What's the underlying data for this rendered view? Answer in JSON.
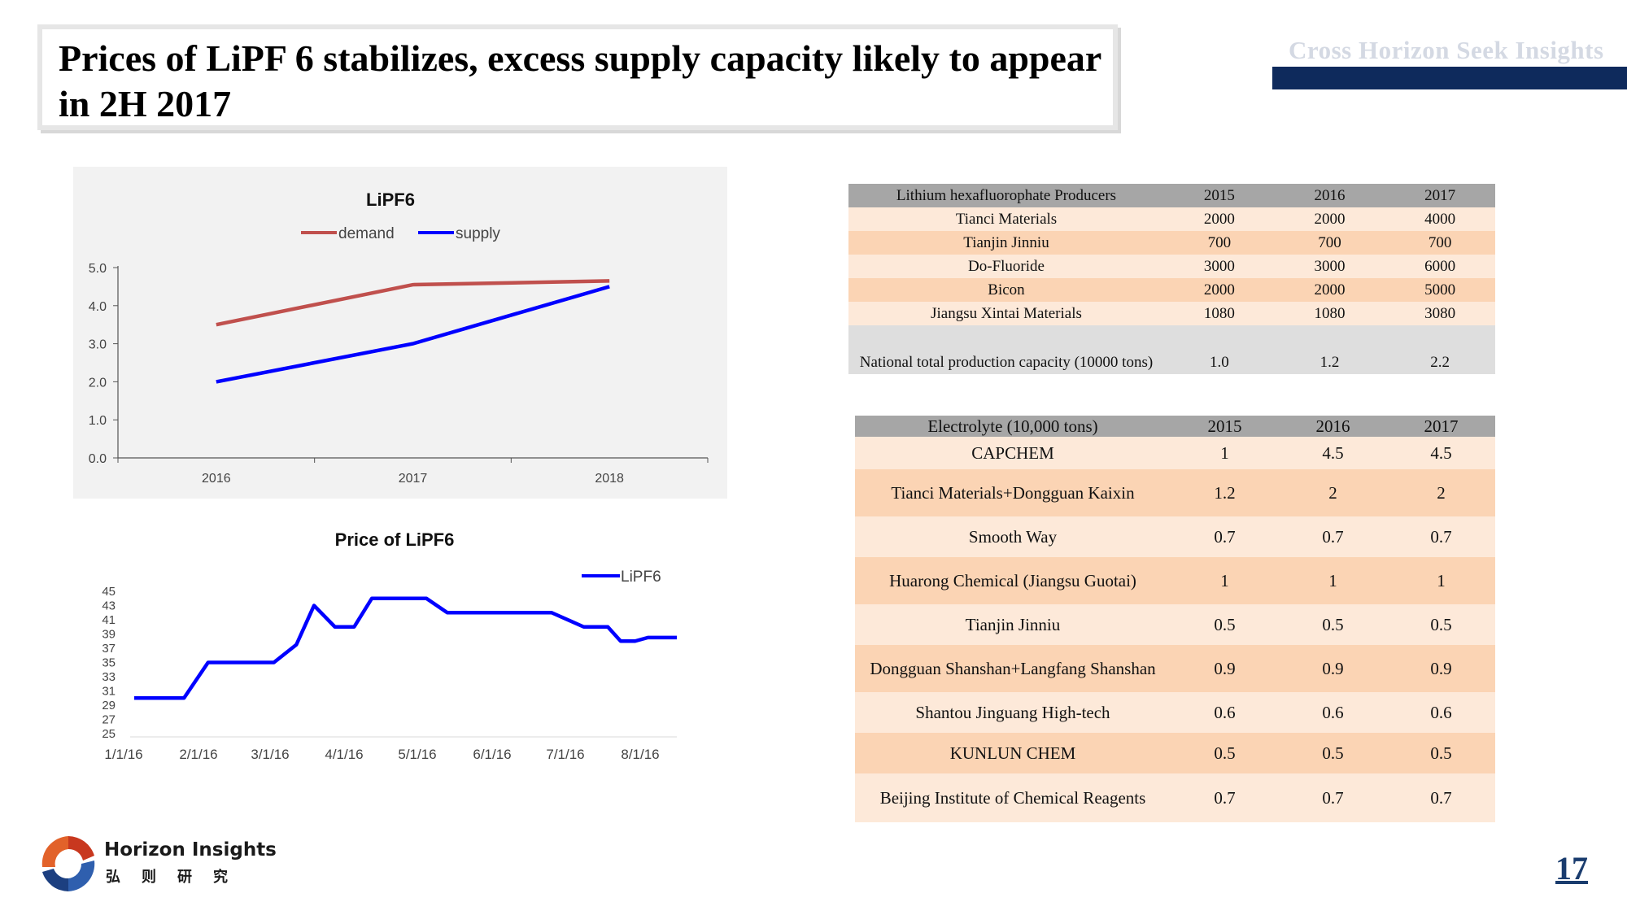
{
  "header": {
    "title": "Prices of LiPF 6 stabilizes, excess supply capacity likely to appear in 2H 2017",
    "brand": "Cross Horizon  Seek Insights"
  },
  "colors": {
    "demand": "#c0504d",
    "supply": "#0000ff",
    "price": "#0000ff",
    "brand_navy": "#0e2a5c"
  },
  "chart_data": [
    {
      "type": "line",
      "title": "LiPF6",
      "categories": [
        "2016",
        "2017",
        "2018"
      ],
      "series": [
        {
          "name": "demand",
          "values": [
            3.5,
            4.55,
            4.65
          ]
        },
        {
          "name": "supply",
          "values": [
            2.0,
            3.0,
            4.5
          ]
        }
      ],
      "y_ticks": [
        "0.0",
        "1.0",
        "2.0",
        "3.0",
        "4.0",
        "5.0"
      ],
      "ylim": [
        0,
        5
      ],
      "legend_position": "top",
      "grid": false
    },
    {
      "type": "line",
      "title": "Price of LiPF6",
      "x_ticks": [
        "1/1/16",
        "2/1/16",
        "3/1/16",
        "4/1/16",
        "5/1/16",
        "6/1/16",
        "7/1/16",
        "8/1/16"
      ],
      "series": [
        {
          "name": "LiPF6",
          "x": [
            0,
            31,
            46,
            70,
            87,
            101,
            112,
            125,
            137,
            148,
            170,
            182,
            195,
            225,
            235,
            260,
            280,
            295,
            303,
            312,
            320,
            338
          ],
          "values": [
            30,
            30,
            35,
            35,
            35,
            37.5,
            43,
            40,
            40,
            44,
            44,
            44,
            42,
            42,
            42,
            42,
            40,
            40,
            38,
            38,
            38.5,
            38.5
          ]
        }
      ],
      "y_ticks": [
        "25",
        "27",
        "29",
        "31",
        "33",
        "35",
        "37",
        "39",
        "41",
        "43",
        "45"
      ],
      "ylim": [
        25,
        45
      ],
      "xlim": [
        0,
        338
      ],
      "legend_position": "top-right",
      "grid": false
    }
  ],
  "table_producers": {
    "headers": [
      "Lithium hexafluorophate Producers",
      "2015",
      "2016",
      "2017"
    ],
    "rows": [
      [
        "Tianci Materials",
        "2000",
        "2000",
        "4000"
      ],
      [
        "Tianjin Jinniu",
        "700",
        "700",
        "700"
      ],
      [
        "Do-Fluoride",
        "3000",
        "3000",
        "6000"
      ],
      [
        "Bicon",
        "2000",
        "2000",
        "5000"
      ],
      [
        "Jiangsu Xintai Materials",
        "1080",
        "1080",
        "3080"
      ]
    ],
    "total_row": [
      "National total production capacity (10000 tons)",
      "1.0",
      "1.2",
      "2.2"
    ]
  },
  "table_electrolyte": {
    "headers": [
      "Electrolyte (10,000 tons)",
      "2015",
      "2016",
      "2017"
    ],
    "rows": [
      [
        "CAPCHEM",
        "1",
        "4.5",
        "4.5"
      ],
      [
        "Tianci Materials+Dongguan Kaixin",
        "1.2",
        "2",
        "2"
      ],
      [
        "Smooth Way",
        "0.7",
        "0.7",
        "0.7"
      ],
      [
        "Huarong Chemical (Jiangsu Guotai)",
        "1",
        "1",
        "1"
      ],
      [
        "Tianjin Jinniu",
        "0.5",
        "0.5",
        "0.5"
      ],
      [
        "Dongguan Shanshan+Langfang Shanshan",
        "0.9",
        "0.9",
        "0.9"
      ],
      [
        "Shantou Jinguang High-tech",
        "0.6",
        "0.6",
        "0.6"
      ],
      [
        "KUNLUN CHEM",
        "0.5",
        "0.5",
        "0.5"
      ],
      [
        "Beijing Institute of Chemical Reagents",
        "0.7",
        "0.7",
        "0.7"
      ]
    ]
  },
  "footer": {
    "logo_en": "Horizon Insights",
    "logo_cn": "弘则研究",
    "page_number": "17"
  }
}
